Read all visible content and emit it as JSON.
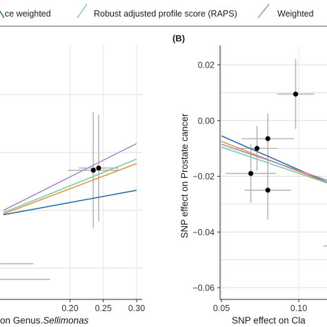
{
  "legend": {
    "items": [
      {
        "label": "ce weighted",
        "color": "#2c6fa6"
      },
      {
        "label": "Robust adjusted profile score (RAPS)",
        "color": "#7fcaa3"
      },
      {
        "label": "Weighted",
        "color": "#a98ad0"
      }
    ]
  },
  "chart_data": [
    {
      "type": "scatter",
      "panel_label": "",
      "xlabel_prefix": "on Genus.",
      "xlabel_italic": "Sellimonas",
      "ylabel": "",
      "xlim": [
        0.1,
        0.3
      ],
      "ylim": [
        -0.2,
        0.37
      ],
      "x_ticks": [
        0.2,
        0.25,
        0.3
      ],
      "x_tick_labels": [
        "0.20",
        "0.25",
        "0.30"
      ],
      "grid": true,
      "points": [
        {
          "x": 0.235,
          "y": 0.09,
          "xerr": 0.038,
          "yerr": 0.13
        },
        {
          "x": 0.243,
          "y": 0.095,
          "xerr": 0.03,
          "yerr": 0.12
        },
        {
          "x": 0.12,
          "y": -0.12,
          "xerr": 0.025,
          "yerr": 0
        },
        {
          "x": 0.12,
          "y": -0.155,
          "xerr": 0.05,
          "yerr": 0
        }
      ],
      "lines": [
        {
          "name": "Weighted",
          "color": "#a98ad0",
          "x": [
            0.1,
            0.3
          ],
          "y": [
            0.0,
            0.15
          ]
        },
        {
          "name": "Robust adjusted profile score (RAPS)",
          "color": "#7fcaa3",
          "x": [
            0.1,
            0.3
          ],
          "y": [
            -0.005,
            0.115
          ]
        },
        {
          "name": "",
          "color": "#e8903a",
          "x": [
            0.1,
            0.3
          ],
          "y": [
            -0.008,
            0.105
          ]
        },
        {
          "name": "",
          "color": "#2c6fa6",
          "x": [
            0.1,
            0.3
          ],
          "y": [
            -0.01,
            0.045
          ]
        }
      ]
    },
    {
      "type": "scatter",
      "panel_label": "(B)",
      "xlabel": "SNP effect on Cla",
      "ylabel": "SNP effect on Prostate cancer",
      "xlim": [
        0.05,
        0.124
      ],
      "ylim": [
        -0.065,
        0.025
      ],
      "x_ticks": [
        0.05,
        0.1
      ],
      "x_tick_labels": [
        "0.05",
        "0.10"
      ],
      "y_ticks": [
        0.02,
        0.0,
        -0.02,
        -0.04,
        -0.06
      ],
      "y_tick_labels": [
        "0.02",
        "0.00",
        "−0.02",
        "−0.04",
        "−0.06"
      ],
      "grid": true,
      "points": [
        {
          "x": 0.098,
          "y": 0.0095,
          "xerr": 0.012,
          "yerr": 0.0125
        },
        {
          "x": 0.08,
          "y": -0.0065,
          "xerr": 0.017,
          "yerr": 0.009
        },
        {
          "x": 0.073,
          "y": -0.01,
          "xerr": 0.013,
          "yerr": 0.008
        },
        {
          "x": 0.069,
          "y": -0.019,
          "xerr": 0.0165,
          "yerr": 0.0105
        },
        {
          "x": 0.08,
          "y": -0.025,
          "xerr": 0.015,
          "yerr": 0.0105
        },
        {
          "x": 0.124,
          "y": -0.045,
          "xerr": 0.008,
          "yerr": 0
        }
      ],
      "lines": [
        {
          "name": "",
          "color": "#2c6fa6",
          "x": [
            0.05,
            0.124
          ],
          "y": [
            -0.0055,
            -0.0235
          ]
        },
        {
          "name": "",
          "color": "#e8903a",
          "x": [
            0.05,
            0.124
          ],
          "y": [
            -0.0075,
            -0.0235
          ]
        },
        {
          "name": "Weighted",
          "color": "#a98ad0",
          "x": [
            0.05,
            0.124
          ],
          "y": [
            -0.0085,
            -0.0225
          ]
        },
        {
          "name": "Robust adjusted profile score (RAPS)",
          "color": "#7fcaa3",
          "x": [
            0.05,
            0.124
          ],
          "y": [
            -0.0095,
            -0.0235
          ]
        }
      ]
    }
  ]
}
